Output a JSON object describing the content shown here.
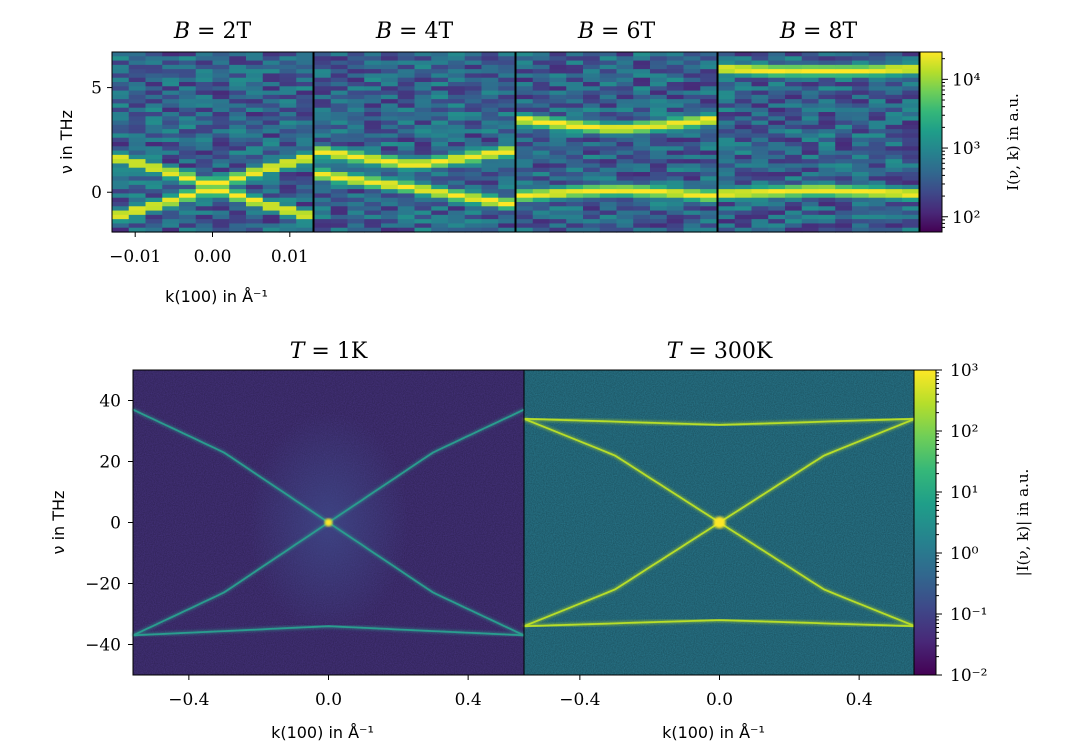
{
  "chart_data": [
    {
      "type": "heatmap",
      "panel": "top",
      "subplots": [
        {
          "title": "B = 2T",
          "bands": [
            {
              "k": [
                -0.013,
                -0.006,
                0.0,
                0.006,
                0.013
              ],
              "nu": [
                1.7,
                1.0,
                0.3,
                1.0,
                1.7
              ]
            },
            {
              "k": [
                -0.013,
                -0.006,
                0.0,
                0.006,
                0.013
              ],
              "nu": [
                -1.2,
                -0.5,
                0.2,
                -0.5,
                -1.2
              ]
            }
          ]
        },
        {
          "title": "B = 4T",
          "bands": [
            {
              "k": [
                -0.013,
                -0.006,
                0.0,
                0.006,
                0.013
              ],
              "nu": [
                2.0,
                1.6,
                1.3,
                1.6,
                2.0
              ]
            },
            {
              "k": [
                -0.013,
                -0.006,
                0.0,
                0.006,
                0.013
              ],
              "nu": [
                0.9,
                0.5,
                0.2,
                -0.2,
                -0.6
              ]
            }
          ]
        },
        {
          "title": "B = 6T",
          "bands": [
            {
              "k": [
                -0.013,
                -0.006,
                0.0,
                0.006,
                0.013
              ],
              "nu": [
                3.5,
                3.2,
                3.0,
                3.2,
                3.5
              ]
            },
            {
              "k": [
                -0.013,
                -0.006,
                0.0,
                0.006,
                0.013
              ],
              "nu": [
                -0.2,
                0.0,
                0.1,
                0.0,
                -0.2
              ]
            }
          ]
        },
        {
          "title": "B = 8T",
          "bands": [
            {
              "k": [
                -0.013,
                -0.006,
                0.0,
                0.006,
                0.013
              ],
              "nu": [
                5.9,
                5.8,
                5.8,
                5.8,
                5.9
              ]
            },
            {
              "k": [
                -0.013,
                -0.006,
                0.0,
                0.006,
                0.013
              ],
              "nu": [
                -0.1,
                0.0,
                0.1,
                0.0,
                -0.1
              ]
            }
          ]
        }
      ],
      "xlabel": "k(100) in Å⁻¹",
      "ylabel": "ν in THz",
      "xlim": [
        -0.013,
        0.013
      ],
      "ylim": [
        -1.9,
        6.7
      ],
      "xticks": [
        -0.01,
        0.0,
        0.01
      ],
      "xtick_labels": [
        "−0.01",
        "0.00",
        "0.01"
      ],
      "yticks": [
        0,
        5
      ],
      "ytick_labels": [
        "0",
        "5"
      ],
      "colorbar": {
        "label": "I(ν, k) in a.u.",
        "scale": "log",
        "range": [
          60,
          25000
        ],
        "ticks": [
          "10²",
          "10³",
          "10⁴"
        ],
        "tick_values": [
          100,
          1000,
          10000
        ]
      }
    },
    {
      "type": "heatmap",
      "panel": "bottom",
      "subplots": [
        {
          "title": "T = 1K",
          "bands": [
            {
              "desc": "upper arc",
              "k": [
                -0.56,
                -0.3,
                0.0,
                0.3,
                0.56
              ],
              "nu": [
                37,
                23,
                0,
                -23,
                -37
              ]
            },
            {
              "desc": "lower arc",
              "k": [
                -0.56,
                -0.3,
                0.0,
                0.3,
                0.56
              ],
              "nu": [
                -37,
                -23,
                0,
                23,
                37
              ]
            },
            {
              "desc": "flat band",
              "k": [
                -0.56,
                0.0,
                0.56
              ],
              "nu": [
                -37,
                -34,
                -37
              ]
            }
          ]
        },
        {
          "title": "T = 300K",
          "bands": [
            {
              "desc": "upper arc",
              "k": [
                -0.56,
                -0.3,
                0.0,
                0.3,
                0.56
              ],
              "nu": [
                -34,
                -22,
                0,
                22,
                34
              ]
            },
            {
              "desc": "lower arc",
              "k": [
                -0.56,
                -0.3,
                0.0,
                0.3,
                0.56
              ],
              "nu": [
                34,
                22,
                0,
                -22,
                -34
              ]
            },
            {
              "desc": "flat band top",
              "k": [
                -0.56,
                0.0,
                0.56
              ],
              "nu": [
                34,
                32,
                34
              ]
            },
            {
              "desc": "flat band bottom",
              "k": [
                -0.56,
                0.0,
                0.56
              ],
              "nu": [
                -34,
                -32,
                -34
              ]
            }
          ]
        }
      ],
      "xlabel": "k(100) in Å⁻¹",
      "ylabel": "ν in THz",
      "xlim": [
        -0.56,
        0.56
      ],
      "ylim": [
        -50,
        50
      ],
      "xticks": [
        -0.4,
        0.0,
        0.4
      ],
      "xtick_labels": [
        "−0.4",
        "0.0",
        "0.4"
      ],
      "yticks": [
        -40,
        -20,
        0,
        20,
        40
      ],
      "ytick_labels": [
        "−40",
        "−20",
        "0",
        "20",
        "40"
      ],
      "colorbar": {
        "label": "|I(ν, k)| in a.u.",
        "scale": "log",
        "range": [
          0.01,
          1000
        ],
        "ticks": [
          "10⁻²",
          "10⁻¹",
          "10⁰",
          "10¹",
          "10²",
          "10³"
        ],
        "tick_values": [
          0.01,
          0.1,
          1,
          10,
          100,
          1000
        ]
      }
    }
  ],
  "colors": {
    "viridis": [
      "#440154",
      "#482878",
      "#3e4989",
      "#31688e",
      "#26828e",
      "#1f9e89",
      "#35b779",
      "#6ece58",
      "#b5de2b",
      "#fde725"
    ]
  }
}
